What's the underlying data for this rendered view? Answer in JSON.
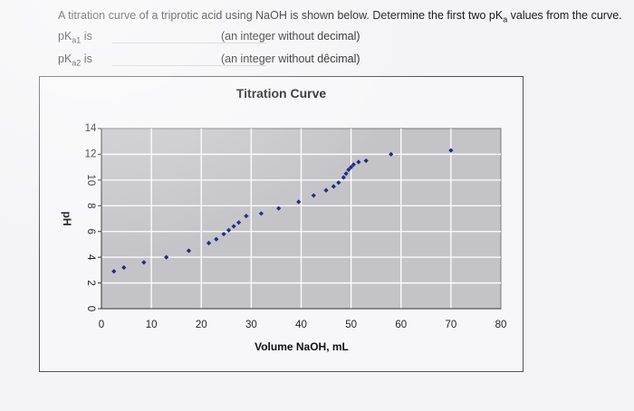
{
  "question": {
    "prefix": "A titration curve of a triprotic acid using NaOH is shown below. Determine the first two pK",
    "prefix_sub": "a",
    "suffix": " values from the curve."
  },
  "answers": [
    {
      "label_main": "pK",
      "label_sub": "a1",
      "label_tail": " is",
      "hint": "(an integer without decimal)"
    },
    {
      "label_main": "pK",
      "label_sub": "a2",
      "label_tail": " is",
      "hint": "(an integer without dêcimal)"
    }
  ],
  "chart_data": {
    "type": "scatter",
    "title": "Titration Curve",
    "xlabel": "Volume NaOH, mL",
    "ylabel": "pH",
    "xlim": [
      0,
      80
    ],
    "ylim": [
      0,
      14
    ],
    "xticks": [
      "0",
      "10",
      "20",
      "30",
      "40",
      "50",
      "60",
      "70",
      "80"
    ],
    "yticks": [
      "0",
      "2",
      "4",
      "6",
      "8",
      "10",
      "12",
      "14"
    ],
    "grid": true,
    "colors": {
      "marker": "#1f2a8a",
      "plot_bg": "#c4c4c8",
      "grid": "#ffffff"
    },
    "series": [
      {
        "values": [
          [
            2.5,
            2.9
          ],
          [
            4.5,
            3.2
          ],
          [
            8.5,
            3.6
          ],
          [
            13,
            4.0
          ],
          [
            17.5,
            4.5
          ],
          [
            21.5,
            5.1
          ],
          [
            23,
            5.4
          ],
          [
            24.5,
            5.8
          ],
          [
            25.5,
            6.1
          ],
          [
            26.5,
            6.4
          ],
          [
            27.5,
            6.7
          ],
          [
            29,
            7.2
          ],
          [
            32,
            7.4
          ],
          [
            35.5,
            7.8
          ],
          [
            39.5,
            8.3
          ],
          [
            42.5,
            8.8
          ],
          [
            45,
            9.2
          ],
          [
            46.5,
            9.5
          ],
          [
            47.5,
            9.8
          ],
          [
            48.5,
            10.2
          ],
          [
            49,
            10.5
          ],
          [
            49.5,
            10.8
          ],
          [
            50,
            11.0
          ],
          [
            50.5,
            11.2
          ],
          [
            51.5,
            11.4
          ],
          [
            53,
            11.5
          ],
          [
            58,
            12.0
          ],
          [
            70,
            12.3
          ]
        ]
      }
    ]
  }
}
